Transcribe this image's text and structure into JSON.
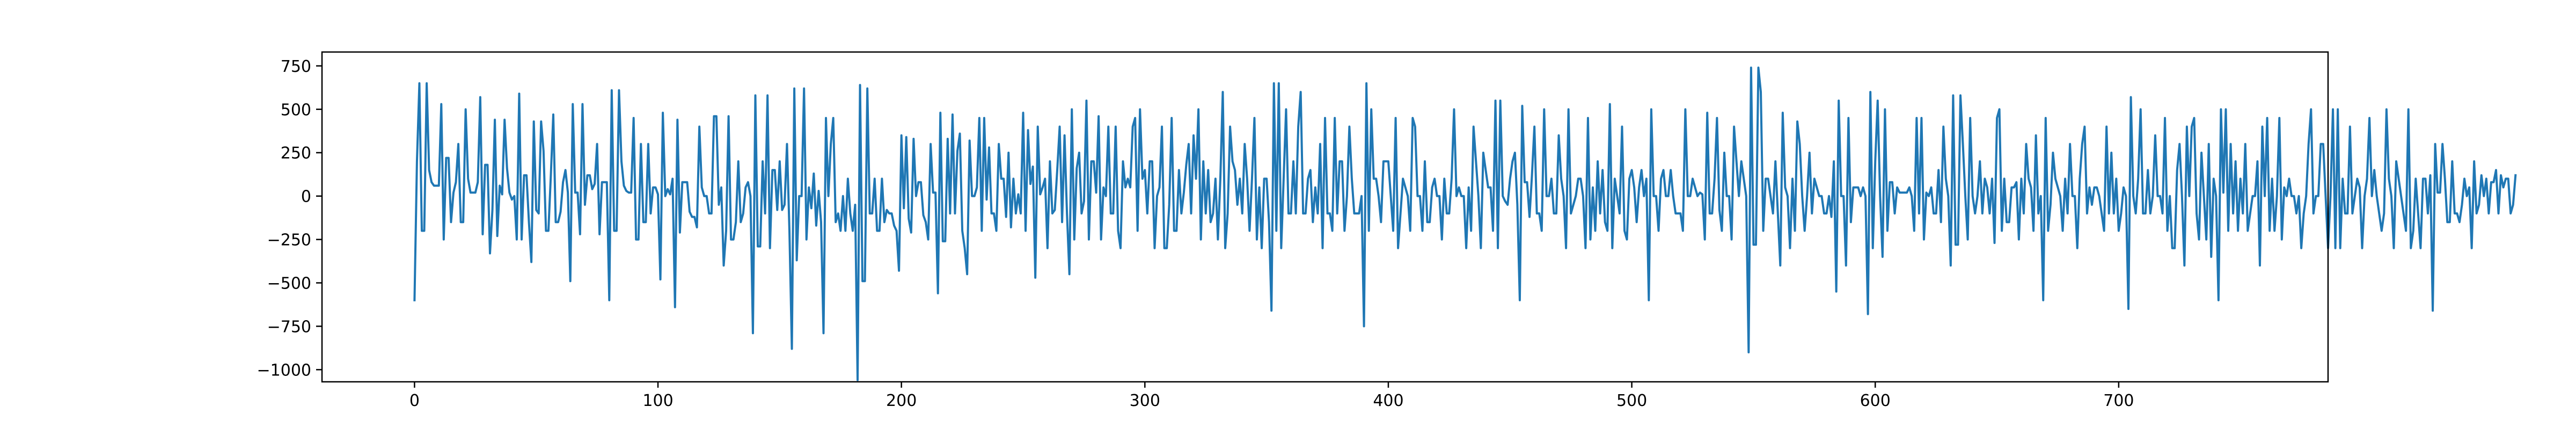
{
  "chart_data": {
    "type": "line",
    "title": "",
    "xlabel": "",
    "ylabel": "",
    "xlim": [
      -38,
      786
    ],
    "ylim": [
      -1070,
      830
    ],
    "grid": false,
    "legend": "none",
    "xticks": [
      0,
      100,
      200,
      300,
      400,
      500,
      600,
      700
    ],
    "yticks": [
      750,
      500,
      250,
      0,
      -250,
      -500,
      -750,
      -1000
    ],
    "xtick_labels": [
      "0",
      "100",
      "200",
      "300",
      "400",
      "500",
      "600",
      "700"
    ],
    "ytick_labels": [
      "750",
      "500",
      "250",
      "0",
      "−250",
      "−500",
      "−750",
      "−1000"
    ],
    "colors": {
      "line": "#1f77b4",
      "axes": "#000000",
      "background": "#ffffff"
    },
    "series": [
      {
        "name": "",
        "x_start": 0,
        "x_step": 1,
        "values": [
          -600,
          200,
          650,
          -200,
          -200,
          650,
          150,
          80,
          60,
          60,
          60,
          530,
          -250,
          220,
          220,
          -150,
          20,
          80,
          300,
          -150,
          -150,
          500,
          100,
          20,
          20,
          20,
          80,
          570,
          -220,
          180,
          180,
          -330,
          -80,
          440,
          -230,
          60,
          10,
          440,
          160,
          20,
          -20,
          0,
          -250,
          590,
          -250,
          120,
          120,
          -150,
          -380,
          430,
          -80,
          -100,
          430,
          260,
          -200,
          -200,
          120,
          470,
          -150,
          -150,
          -90,
          80,
          150,
          20,
          -490,
          530,
          20,
          20,
          -220,
          530,
          -50,
          120,
          120,
          40,
          70,
          300,
          -220,
          80,
          80,
          80,
          -600,
          610,
          -200,
          -200,
          610,
          200,
          60,
          30,
          20,
          20,
          450,
          -250,
          -250,
          300,
          -150,
          -150,
          300,
          -100,
          50,
          50,
          10,
          -480,
          480,
          0,
          40,
          10,
          100,
          -640,
          440,
          -210,
          80,
          80,
          80,
          -90,
          -120,
          -120,
          -180,
          400,
          50,
          0,
          0,
          -100,
          -100,
          460,
          460,
          -50,
          50,
          -400,
          -200,
          460,
          -250,
          -250,
          -150,
          200,
          -150,
          -100,
          50,
          80,
          0,
          -790,
          580,
          -290,
          -290,
          200,
          -100,
          580,
          -300,
          150,
          150,
          -80,
          200,
          -80,
          -50,
          300,
          -200,
          -880,
          620,
          -370,
          0,
          0,
          620,
          -250,
          50,
          -70,
          130,
          -170,
          30,
          -150,
          -790,
          450,
          0,
          300,
          450,
          -150,
          -100,
          -200,
          0,
          -200,
          100,
          -100,
          -200,
          -50,
          -1060,
          640,
          -490,
          -490,
          620,
          -100,
          -100,
          100,
          -200,
          -200,
          100,
          -150,
          -80,
          -100,
          -100,
          -170,
          -200,
          -430,
          350,
          -70,
          340,
          -130,
          -210,
          330,
          0,
          80,
          80,
          -110,
          -150,
          -250,
          300,
          20,
          20,
          -560,
          480,
          -260,
          -260,
          330,
          -100,
          470,
          -100,
          260,
          360,
          -200,
          -300,
          -450,
          320,
          0,
          0,
          50,
          450,
          -200,
          450,
          -20,
          280,
          -100,
          -100,
          -200,
          300,
          100,
          100,
          -120,
          250,
          -180,
          100,
          -100,
          10,
          -100,
          480,
          -200,
          380,
          70,
          170,
          -470,
          400,
          10,
          50,
          100,
          -300,
          200,
          -100,
          -80,
          150,
          400,
          -150,
          350,
          -100,
          -450,
          500,
          -250,
          160,
          250,
          -100,
          -30,
          550,
          -250,
          200,
          200,
          20,
          460,
          -250,
          50,
          0,
          400,
          -100,
          -100,
          400,
          -200,
          -300,
          200,
          50,
          100,
          50,
          400,
          450,
          -200,
          500,
          100,
          150,
          -100,
          200,
          200,
          -300,
          0,
          50,
          400,
          -300,
          -300,
          -50,
          450,
          -200,
          -200,
          150,
          -100,
          20,
          180,
          300,
          -100,
          350,
          100,
          500,
          -250,
          200,
          -100,
          150,
          -150,
          -100,
          100,
          -250,
          100,
          600,
          -300,
          -100,
          400,
          200,
          150,
          -50,
          100,
          -100,
          300,
          100,
          -200,
          100,
          450,
          -250,
          50,
          -300,
          100,
          100,
          -150,
          -660,
          650,
          -200,
          650,
          -300,
          100,
          500,
          -100,
          -100,
          200,
          -100,
          400,
          600,
          -100,
          -100,
          100,
          150,
          -150,
          50,
          -100,
          300,
          -300,
          450,
          -100,
          -100,
          -200,
          450,
          -100,
          200,
          200,
          -200,
          0,
          400,
          100,
          -100,
          -100,
          -100,
          0,
          -750,
          650,
          -200,
          500,
          100,
          100,
          0,
          -150,
          200,
          200,
          200,
          0,
          -200,
          450,
          -300,
          -100,
          100,
          50,
          0,
          -200,
          450,
          400,
          0,
          0,
          -200,
          200,
          -150,
          -150,
          50,
          100,
          0,
          0,
          -250,
          100,
          -100,
          -100,
          100,
          500,
          0,
          50,
          0,
          0,
          -300,
          50,
          -200,
          400,
          200,
          0,
          -300,
          250,
          150,
          50,
          50,
          -200,
          550,
          -300,
          550,
          0,
          -30,
          -50,
          100,
          200,
          250,
          -50,
          -600,
          520,
          80,
          80,
          -120,
          120,
          400,
          -100,
          -100,
          -200,
          500,
          0,
          0,
          100,
          -100,
          -100,
          350,
          100,
          0,
          -300,
          500,
          -100,
          -50,
          0,
          100,
          100,
          0,
          -300,
          450,
          -250,
          50,
          -200,
          200,
          -100,
          150,
          -150,
          -200,
          530,
          -300,
          100,
          0,
          -100,
          400,
          -200,
          -250,
          100,
          150,
          50,
          -150,
          50,
          150,
          0,
          100,
          -600,
          500,
          0,
          0,
          -200,
          100,
          150,
          0,
          0,
          150,
          0,
          -100,
          -100,
          -100,
          -200,
          500,
          0,
          0,
          100,
          50,
          0,
          20,
          10,
          -250,
          480,
          -100,
          -100,
          100,
          450,
          -80,
          -200,
          250,
          0,
          0,
          -250,
          400,
          200,
          0,
          200,
          100,
          0,
          -900,
          740,
          -280,
          -280,
          740,
          600,
          -200,
          100,
          100,
          0,
          -100,
          200,
          -100,
          -400,
          480,
          50,
          0,
          -300,
          100,
          -200,
          430,
          300,
          0,
          -200,
          0,
          250,
          -100,
          100,
          50,
          0,
          0,
          -100,
          -100,
          0,
          -120,
          200,
          -550,
          550,
          0,
          0,
          -400,
          450,
          -150,
          50,
          50,
          50,
          0,
          50,
          0,
          -680,
          600,
          -300,
          200,
          550,
          0,
          -350,
          500,
          -200,
          80,
          80,
          -100,
          50,
          20,
          20,
          20,
          20,
          50,
          0,
          -200,
          450,
          -100,
          450,
          -250,
          20,
          0,
          50,
          -100,
          -100,
          150,
          -150,
          400,
          100,
          0,
          -400,
          580,
          -280,
          -280,
          580,
          300,
          0,
          -250,
          450,
          0,
          -100,
          0,
          200,
          -100,
          100,
          50,
          -100,
          100,
          -270,
          450,
          500,
          -200,
          100,
          -150,
          -150,
          50,
          50,
          80,
          -250,
          100,
          -100,
          300,
          100,
          50,
          -200,
          350,
          -100,
          0,
          -600,
          450,
          -200,
          -50,
          250,
          100,
          50,
          0,
          -200,
          100,
          -100,
          300,
          0,
          0,
          -300,
          100,
          300,
          400,
          -100,
          50,
          -50,
          50,
          50,
          0,
          -100,
          -200,
          400,
          -100,
          250,
          -100,
          100,
          -200,
          -100,
          50,
          0,
          -650,
          570,
          0,
          -100,
          100,
          500,
          -100,
          -100,
          150,
          -100,
          0,
          350,
          0,
          0,
          -100,
          450,
          -200,
          0,
          -300,
          -300,
          150,
          300,
          0,
          -400,
          400,
          0,
          400,
          450,
          -100,
          -250,
          250,
          0,
          -250,
          300,
          -350,
          100,
          0,
          -600,
          500,
          20,
          500,
          -200,
          300,
          -100,
          200,
          -200,
          100,
          -100,
          300,
          -200,
          -100,
          0,
          0,
          200,
          -400,
          400,
          0,
          450,
          -200,
          100,
          -200,
          0,
          450,
          -250,
          50,
          0,
          100,
          0,
          0,
          -100,
          0,
          -300,
          -100,
          0,
          300,
          500,
          -100,
          0,
          0,
          300,
          300,
          0,
          -300,
          0,
          500,
          -300,
          500,
          -300,
          100,
          -100,
          -100,
          400,
          -100,
          0,
          100,
          50,
          -300,
          0,
          100,
          450,
          0,
          150,
          0,
          -100,
          -200,
          -100,
          500,
          100,
          0,
          -300,
          200,
          100,
          0,
          -100,
          -200,
          500,
          -300,
          -200,
          100,
          -100,
          -300,
          100,
          100,
          -100,
          120,
          -660,
          300,
          20,
          20,
          300,
          100,
          -150,
          -150,
          200,
          -100,
          -100,
          -150,
          -50,
          100,
          0,
          50,
          -300,
          200,
          -100,
          -50,
          120,
          0,
          100,
          -100,
          80,
          80,
          150,
          -100,
          120,
          50,
          100,
          100,
          -100,
          -50,
          120
        ]
      }
    ]
  }
}
